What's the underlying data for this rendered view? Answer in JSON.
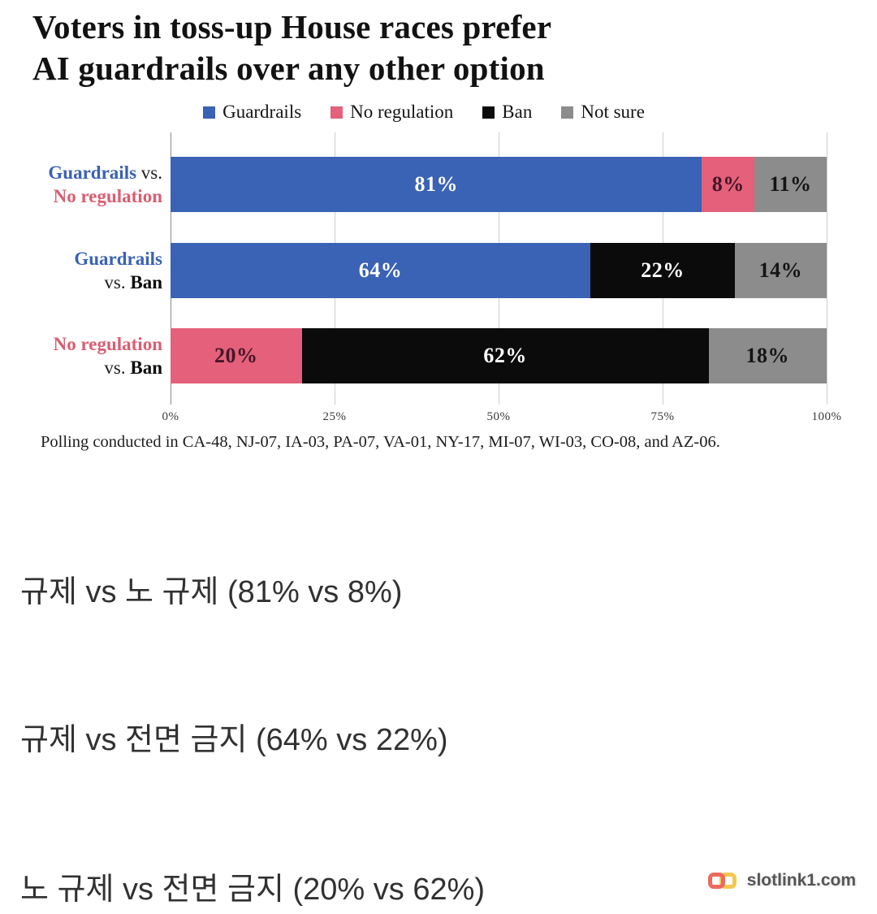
{
  "title": {
    "line1": "Voters in toss-up House races prefer",
    "line2": "AI guardrails over any other option"
  },
  "legend": {
    "items": [
      {
        "label": "Guardrails",
        "color": "#3a62b5"
      },
      {
        "label": "No regulation",
        "color": "#e5607a"
      },
      {
        "label": "Ban",
        "color": "#0b0b0b"
      },
      {
        "label": "Not sure",
        "color": "#8c8c8c"
      }
    ]
  },
  "chart_data": {
    "type": "bar",
    "orientation": "horizontal",
    "stacked": true,
    "grid": true,
    "legend_position": "top",
    "xlim": [
      0,
      100
    ],
    "x_ticks": [
      {
        "value": 0,
        "label": "0%"
      },
      {
        "value": 25,
        "label": "25%"
      },
      {
        "value": 50,
        "label": "50%"
      },
      {
        "value": 75,
        "label": "75%"
      },
      {
        "value": 100,
        "label": "100%"
      }
    ],
    "categories": [
      "Guardrails vs. No regulation",
      "Guardrails vs. Ban",
      "No regulation vs. Ban"
    ],
    "rows": [
      {
        "category": "Guardrails vs. No regulation",
        "label_lines": [
          [
            {
              "text": "Guardrails",
              "color": "#3a62b5",
              "bold": true
            },
            {
              "text": " vs.",
              "color": "#1c1c1c",
              "bold": false
            }
          ],
          [
            {
              "text": "No regulation",
              "color": "#d85f72",
              "bold": true
            }
          ]
        ],
        "segments": [
          {
            "name": "Guardrails",
            "value": 81,
            "label": "81%",
            "color": "#3a62b5",
            "label_color": "#ffffff"
          },
          {
            "name": "No regulation",
            "value": 8,
            "label": "8%",
            "color": "#e5607a",
            "label_color": "#441628"
          },
          {
            "name": "Not sure",
            "value": 11,
            "label": "11%",
            "color": "#8c8c8c",
            "label_color": "#141414"
          }
        ]
      },
      {
        "category": "Guardrails vs. Ban",
        "label_lines": [
          [
            {
              "text": "Guardrails",
              "color": "#3a62b5",
              "bold": true
            }
          ],
          [
            {
              "text": "vs. ",
              "color": "#1c1c1c",
              "bold": false
            },
            {
              "text": "Ban",
              "color": "#0b0b0b",
              "bold": true
            }
          ]
        ],
        "segments": [
          {
            "name": "Guardrails",
            "value": 64,
            "label": "64%",
            "color": "#3a62b5",
            "label_color": "#ffffff"
          },
          {
            "name": "Ban",
            "value": 22,
            "label": "22%",
            "color": "#0b0b0b",
            "label_color": "#ffffff"
          },
          {
            "name": "Not sure",
            "value": 14,
            "label": "14%",
            "color": "#8c8c8c",
            "label_color": "#141414"
          }
        ]
      },
      {
        "category": "No regulation vs. Ban",
        "label_lines": [
          [
            {
              "text": "No regulation",
              "color": "#d85f72",
              "bold": true
            }
          ],
          [
            {
              "text": "vs. ",
              "color": "#1c1c1c",
              "bold": false
            },
            {
              "text": "Ban",
              "color": "#0b0b0b",
              "bold": true
            }
          ]
        ],
        "segments": [
          {
            "name": "No regulation",
            "value": 20,
            "label": "20%",
            "color": "#e5607a",
            "label_color": "#441628"
          },
          {
            "name": "Ban",
            "value": 62,
            "label": "62%",
            "color": "#0b0b0b",
            "label_color": "#ffffff"
          },
          {
            "name": "Not sure",
            "value": 18,
            "label": "18%",
            "color": "#8c8c8c",
            "label_color": "#141414"
          }
        ]
      }
    ]
  },
  "footnote": "Polling conducted in CA-48, NJ-07, IA-03, PA-07, VA-01, NY-17, MI-07, WI-03, CO-08, and AZ-06.",
  "captions": [
    "규제 vs 노 규제 (81% vs 8%)",
    "규제 vs 전면 금지 (64% vs 22%)",
    "노 규제 vs 전면 금지 (20% vs 62%)"
  ],
  "watermark": {
    "text": "slotlink1.com",
    "icon": "chain-link-icon",
    "icon_left_color": "#ec6a60",
    "icon_right_color": "#f4c84e",
    "text_color": "#555555"
  }
}
